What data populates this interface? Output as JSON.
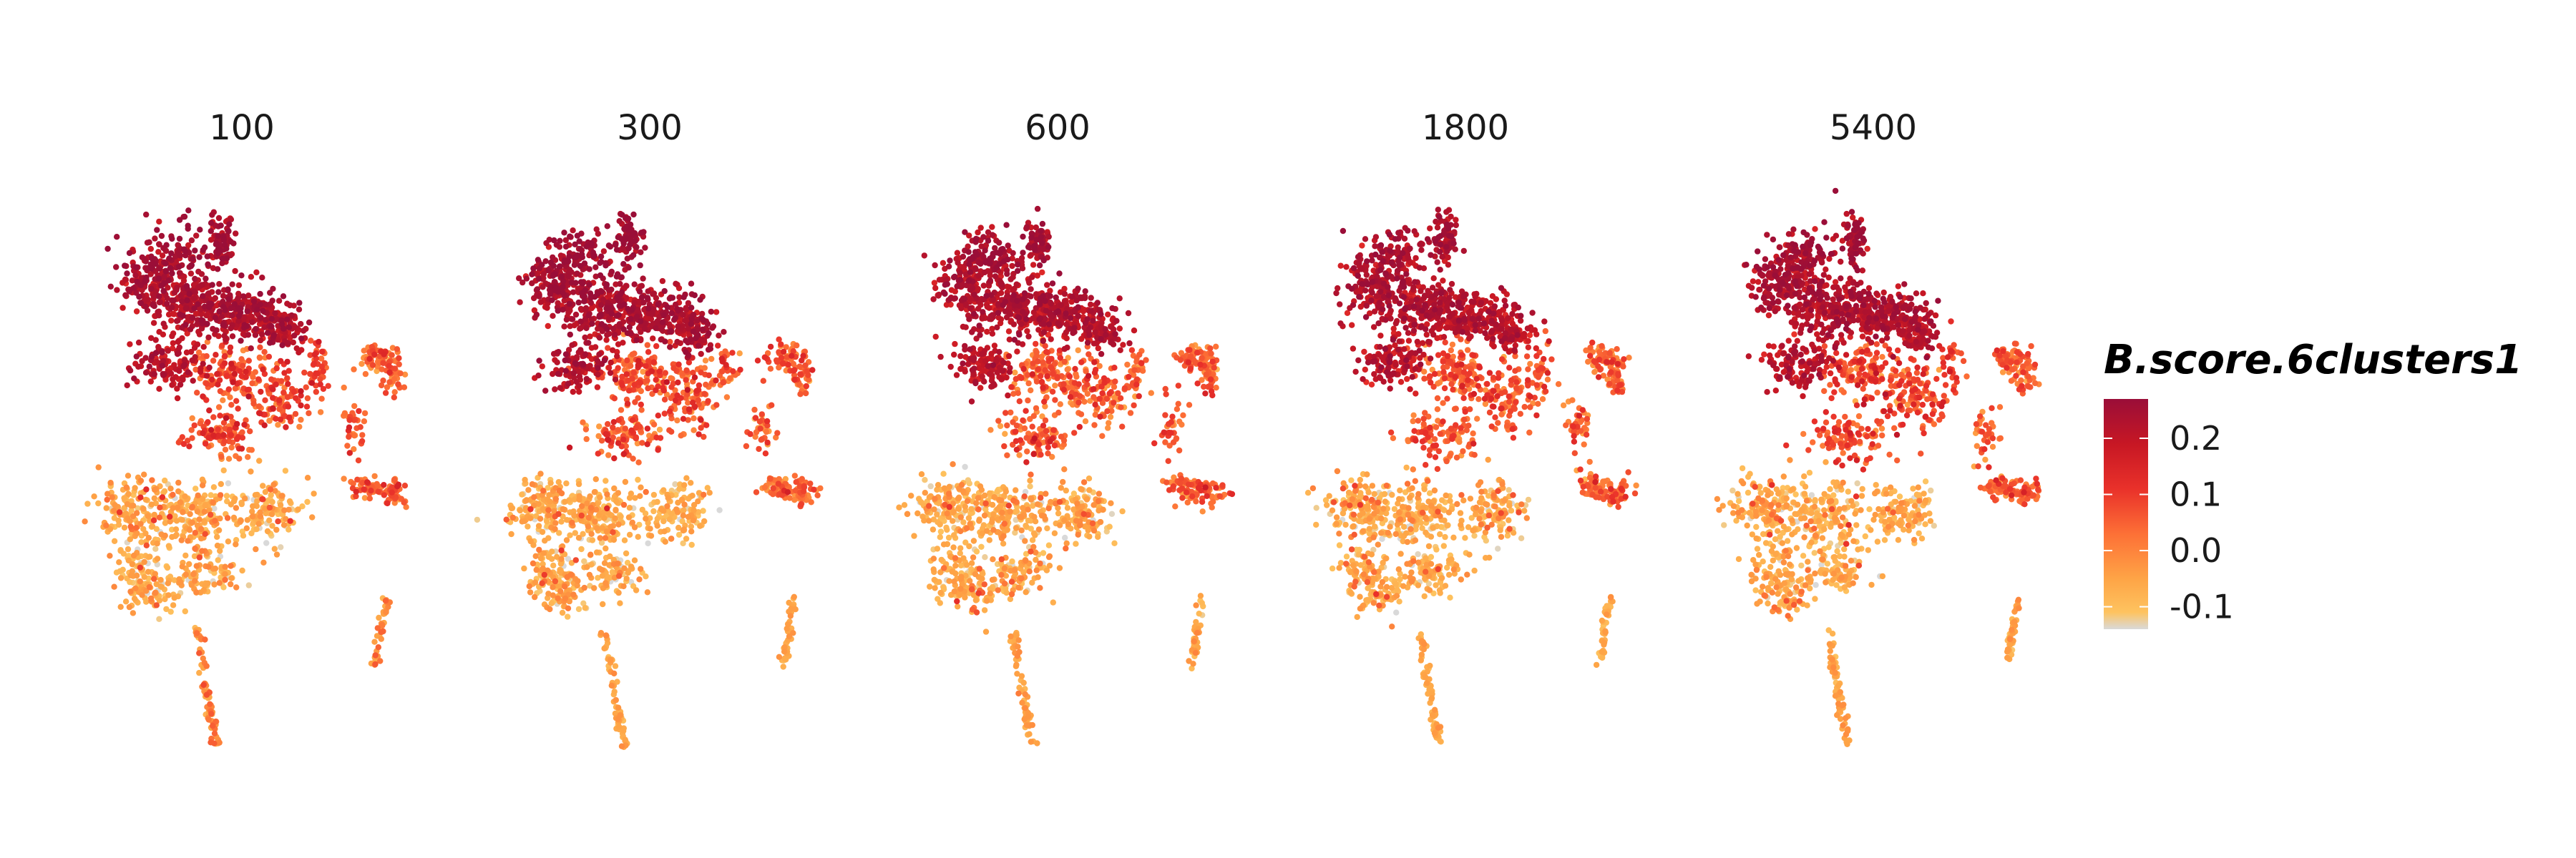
{
  "chart_data": {
    "type": "scatter",
    "panels": [
      {
        "title": "100",
        "red_extent": 0.6,
        "top_boost": 0.1,
        "tail_red": 0.55
      },
      {
        "title": "300",
        "red_extent": 0.45,
        "top_boost": 0.12,
        "tail_red": 0.15
      },
      {
        "title": "600",
        "red_extent": 0.42,
        "top_boost": 0.08,
        "tail_red": 0.18
      },
      {
        "title": "1800",
        "red_extent": 0.48,
        "top_boost": 0.06,
        "tail_red": 0.12
      },
      {
        "title": "5400",
        "red_extent": 0.62,
        "top_boost": 0.09,
        "tail_red": 0.2
      }
    ],
    "legend": {
      "title": "B.score.6clusters1",
      "ticks": [
        {
          "value": 0.2,
          "label": "0.2"
        },
        {
          "value": 0.1,
          "label": "0.1"
        },
        {
          "value": 0.0,
          "label": "0.0"
        },
        {
          "value": -0.1,
          "label": "-0.1"
        }
      ],
      "range": [
        -0.14,
        0.27
      ],
      "position": "right"
    },
    "color_scale": [
      {
        "value": -0.14,
        "color": "#d9d9d9"
      },
      {
        "value": -0.11,
        "color": "#fec35f"
      },
      {
        "value": -0.05,
        "color": "#fea446"
      },
      {
        "value": 0.03,
        "color": "#fd7036"
      },
      {
        "value": 0.11,
        "color": "#e9312a"
      },
      {
        "value": 0.19,
        "color": "#c71724"
      },
      {
        "value": 0.27,
        "color": "#9a0e38"
      }
    ],
    "grid": false
  }
}
